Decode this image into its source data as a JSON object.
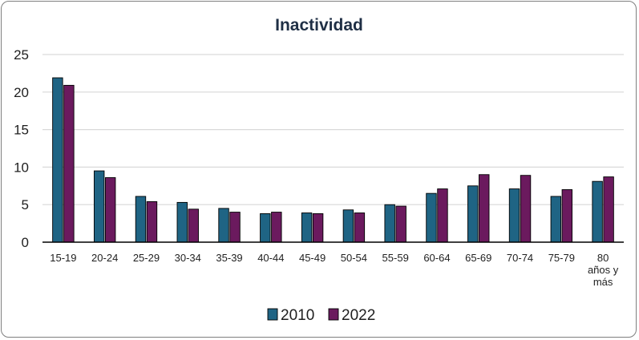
{
  "chart_data": {
    "type": "bar",
    "title": "Inactividad",
    "categories": [
      "15-19",
      "20-24",
      "25-29",
      "30-34",
      "35-39",
      "40-44",
      "45-49",
      "50-54",
      "55-59",
      "60-64",
      "65-69",
      "70-74",
      "75-79",
      "80 años y más"
    ],
    "category_lines": [
      [
        "15-19"
      ],
      [
        "20-24"
      ],
      [
        "25-29"
      ],
      [
        "30-34"
      ],
      [
        "35-39"
      ],
      [
        "40-44"
      ],
      [
        "45-49"
      ],
      [
        "50-54"
      ],
      [
        "55-59"
      ],
      [
        "60-64"
      ],
      [
        "65-69"
      ],
      [
        "70-74"
      ],
      [
        "75-79"
      ],
      [
        "80",
        "años y",
        "más"
      ]
    ],
    "series": [
      {
        "name": "2010",
        "color": "#1f6484",
        "values": [
          21.9,
          9.5,
          6.1,
          5.3,
          4.5,
          3.8,
          3.9,
          4.3,
          5.0,
          6.5,
          7.5,
          7.1,
          6.1,
          8.1
        ]
      },
      {
        "name": "2022",
        "color": "#6b1a5e",
        "values": [
          20.9,
          8.6,
          5.4,
          4.4,
          4.0,
          4.0,
          3.8,
          3.9,
          4.8,
          7.1,
          9.0,
          8.9,
          7.0,
          8.7
        ]
      }
    ],
    "yticks": [
      0,
      5,
      10,
      15,
      20,
      25
    ],
    "ylim": [
      0,
      25
    ],
    "grid": true,
    "legend_position": "bottom"
  }
}
